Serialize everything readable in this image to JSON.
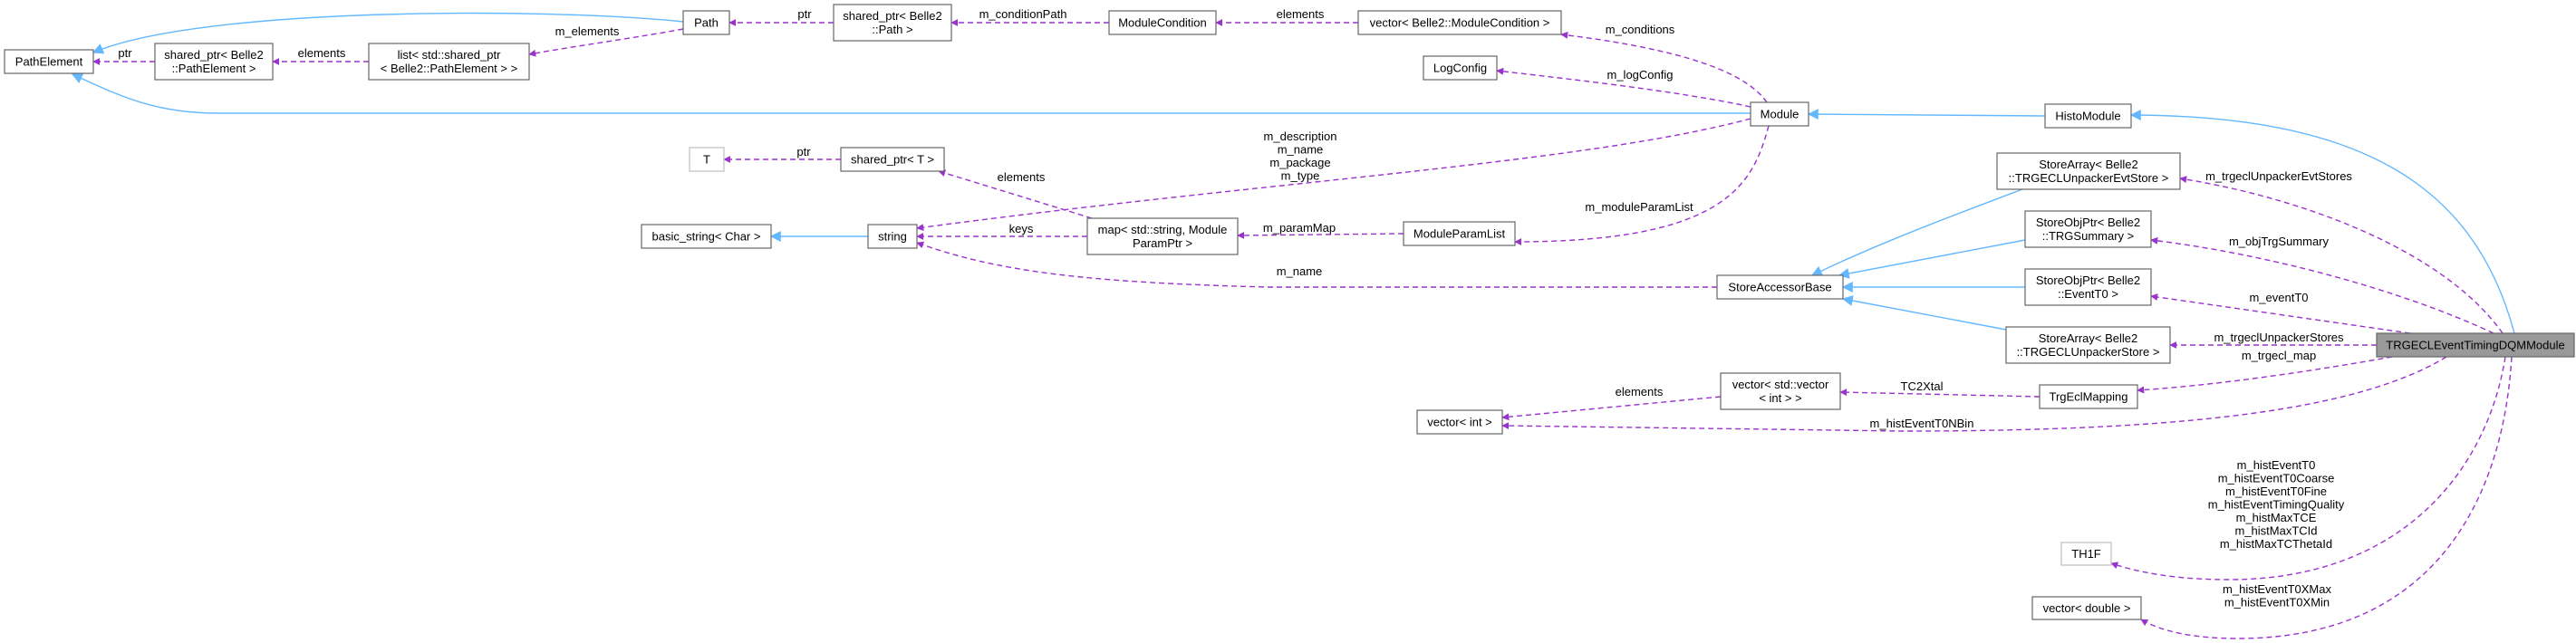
{
  "colors": {
    "usage": "#9a32cd",
    "inheritance": "#63b8ff",
    "focus_fill": "#999999"
  },
  "nodes": [
    {
      "id": "PathElement",
      "lines": [
        "PathElement"
      ]
    },
    {
      "id": "sp_PathElement",
      "lines": [
        "shared_ptr< Belle2",
        "::PathElement >"
      ]
    },
    {
      "id": "list_sp",
      "lines": [
        "list< std::shared_ptr",
        "< Belle2::PathElement > >"
      ]
    },
    {
      "id": "Path",
      "lines": [
        "Path"
      ]
    },
    {
      "id": "sp_Path",
      "lines": [
        "shared_ptr< Belle2",
        "::Path >"
      ]
    },
    {
      "id": "ModuleCondition",
      "lines": [
        "ModuleCondition"
      ]
    },
    {
      "id": "vec_ModCond",
      "lines": [
        "vector< Belle2::ModuleCondition >"
      ]
    },
    {
      "id": "LogConfig",
      "lines": [
        "LogConfig"
      ]
    },
    {
      "id": "Module",
      "lines": [
        "Module"
      ]
    },
    {
      "id": "HistoModule",
      "lines": [
        "HistoModule"
      ]
    },
    {
      "id": "T",
      "lines": [
        "T"
      ],
      "style": "faded"
    },
    {
      "id": "sp_T",
      "lines": [
        "shared_ptr< T >"
      ]
    },
    {
      "id": "basic_string",
      "lines": [
        "basic_string< Char >"
      ]
    },
    {
      "id": "string",
      "lines": [
        "string"
      ]
    },
    {
      "id": "map",
      "lines": [
        "map< std::string, Module",
        "ParamPtr >"
      ]
    },
    {
      "id": "ModuleParamList",
      "lines": [
        "ModuleParamList"
      ]
    },
    {
      "id": "StoreAccessorBase",
      "lines": [
        "StoreAccessorBase"
      ]
    },
    {
      "id": "SA_EvtStore",
      "lines": [
        "StoreArray< Belle2",
        "::TRGECLUnpackerEvtStore >"
      ]
    },
    {
      "id": "SOP_TRGSummary",
      "lines": [
        "StoreObjPtr< Belle2",
        "::TRGSummary >"
      ]
    },
    {
      "id": "SOP_EventT0",
      "lines": [
        "StoreObjPtr< Belle2",
        "::EventT0 >"
      ]
    },
    {
      "id": "SA_Store",
      "lines": [
        "StoreArray< Belle2",
        "::TRGECLUnpackerStore >"
      ]
    },
    {
      "id": "TRGECL",
      "lines": [
        "TRGECLEventTimingDQMModule"
      ],
      "style": "focus"
    },
    {
      "id": "vec_vec_int",
      "lines": [
        "vector< std::vector",
        "< int > >"
      ]
    },
    {
      "id": "TrgEclMapping",
      "lines": [
        "TrgEclMapping"
      ]
    },
    {
      "id": "vec_int",
      "lines": [
        "vector< int >"
      ]
    },
    {
      "id": "TH1F",
      "lines": [
        "TH1F"
      ],
      "style": "faded"
    },
    {
      "id": "vec_double",
      "lines": [
        "vector< double >"
      ]
    }
  ],
  "edges": [
    {
      "from": "Path",
      "to": "PathElement",
      "kind": "inheritance",
      "labels": []
    },
    {
      "from": "Module",
      "to": "PathElement",
      "kind": "inheritance",
      "labels": []
    },
    {
      "from": "sp_PathElement",
      "to": "PathElement",
      "kind": "usage",
      "labels": [
        "ptr"
      ]
    },
    {
      "from": "list_sp",
      "to": "sp_PathElement",
      "kind": "usage",
      "labels": [
        "elements"
      ]
    },
    {
      "from": "Path",
      "to": "list_sp",
      "kind": "usage",
      "labels": [
        "m_elements"
      ]
    },
    {
      "from": "sp_Path",
      "to": "Path",
      "kind": "usage",
      "labels": [
        "ptr"
      ]
    },
    {
      "from": "ModuleCondition",
      "to": "sp_Path",
      "kind": "usage",
      "labels": [
        "m_conditionPath"
      ]
    },
    {
      "from": "vec_ModCond",
      "to": "ModuleCondition",
      "kind": "usage",
      "labels": [
        "elements"
      ]
    },
    {
      "from": "Module",
      "to": "vec_ModCond",
      "kind": "usage",
      "labels": [
        "m_conditions"
      ]
    },
    {
      "from": "Module",
      "to": "LogConfig",
      "kind": "usage",
      "labels": [
        "m_logConfig"
      ]
    },
    {
      "from": "Module",
      "to": "string",
      "kind": "usage",
      "labels": [
        "m_description",
        "m_name",
        "m_package",
        "m_type"
      ]
    },
    {
      "from": "Module",
      "to": "ModuleParamList",
      "kind": "usage",
      "labels": [
        "m_moduleParamList"
      ]
    },
    {
      "from": "HistoModule",
      "to": "Module",
      "kind": "inheritance",
      "labels": []
    },
    {
      "from": "TRGECL",
      "to": "HistoModule",
      "kind": "inheritance",
      "labels": []
    },
    {
      "from": "SA_EvtStore",
      "to": "StoreAccessorBase",
      "kind": "inheritance",
      "labels": []
    },
    {
      "from": "SOP_TRGSummary",
      "to": "StoreAccessorBase",
      "kind": "inheritance",
      "labels": []
    },
    {
      "from": "SOP_EventT0",
      "to": "StoreAccessorBase",
      "kind": "inheritance",
      "labels": []
    },
    {
      "from": "SA_Store",
      "to": "StoreAccessorBase",
      "kind": "inheritance",
      "labels": []
    },
    {
      "from": "TRGECL",
      "to": "SA_EvtStore",
      "kind": "usage",
      "labels": [
        "m_trgeclUnpackerEvtStores"
      ]
    },
    {
      "from": "TRGECL",
      "to": "SOP_TRGSummary",
      "kind": "usage",
      "labels": [
        "m_objTrgSummary"
      ]
    },
    {
      "from": "TRGECL",
      "to": "SOP_EventT0",
      "kind": "usage",
      "labels": [
        "m_eventT0"
      ]
    },
    {
      "from": "TRGECL",
      "to": "SA_Store",
      "kind": "usage",
      "labels": [
        "m_trgeclUnpackerStores"
      ]
    },
    {
      "from": "TRGECL",
      "to": "TrgEclMapping",
      "kind": "usage",
      "labels": [
        "m_trgecl_map"
      ]
    },
    {
      "from": "TrgEclMapping",
      "to": "vec_vec_int",
      "kind": "usage",
      "labels": [
        "TC2Xtal"
      ]
    },
    {
      "from": "vec_vec_int",
      "to": "vec_int",
      "kind": "usage",
      "labels": [
        "elements"
      ]
    },
    {
      "from": "TRGECL",
      "to": "vec_int",
      "kind": "usage",
      "labels": [
        "m_histEventT0NBin"
      ]
    },
    {
      "from": "StoreAccessorBase",
      "to": "string",
      "kind": "usage",
      "labels": [
        "m_name"
      ]
    },
    {
      "from": "map",
      "to": "string",
      "kind": "usage",
      "labels": [
        "keys"
      ]
    },
    {
      "from": "map",
      "to": "sp_T",
      "kind": "usage",
      "labels": [
        "elements"
      ]
    },
    {
      "from": "ModuleParamList",
      "to": "map",
      "kind": "usage",
      "labels": [
        "m_paramMap"
      ]
    },
    {
      "from": "sp_T",
      "to": "T",
      "kind": "usage",
      "labels": [
        "ptr"
      ]
    },
    {
      "from": "string",
      "to": "basic_string",
      "kind": "inheritance",
      "labels": []
    },
    {
      "from": "TRGECL",
      "to": "TH1F",
      "kind": "usage",
      "labels": [
        "m_histEventT0",
        "m_histEventT0Coarse",
        "m_histEventT0Fine",
        "m_histEventTimingQuality",
        "m_histMaxTCE",
        "m_histMaxTCId",
        "m_histMaxTCThetaId"
      ]
    },
    {
      "from": "TRGECL",
      "to": "vec_double",
      "kind": "usage",
      "labels": [
        "m_histEventT0XMax",
        "m_histEventT0XMin"
      ]
    }
  ]
}
